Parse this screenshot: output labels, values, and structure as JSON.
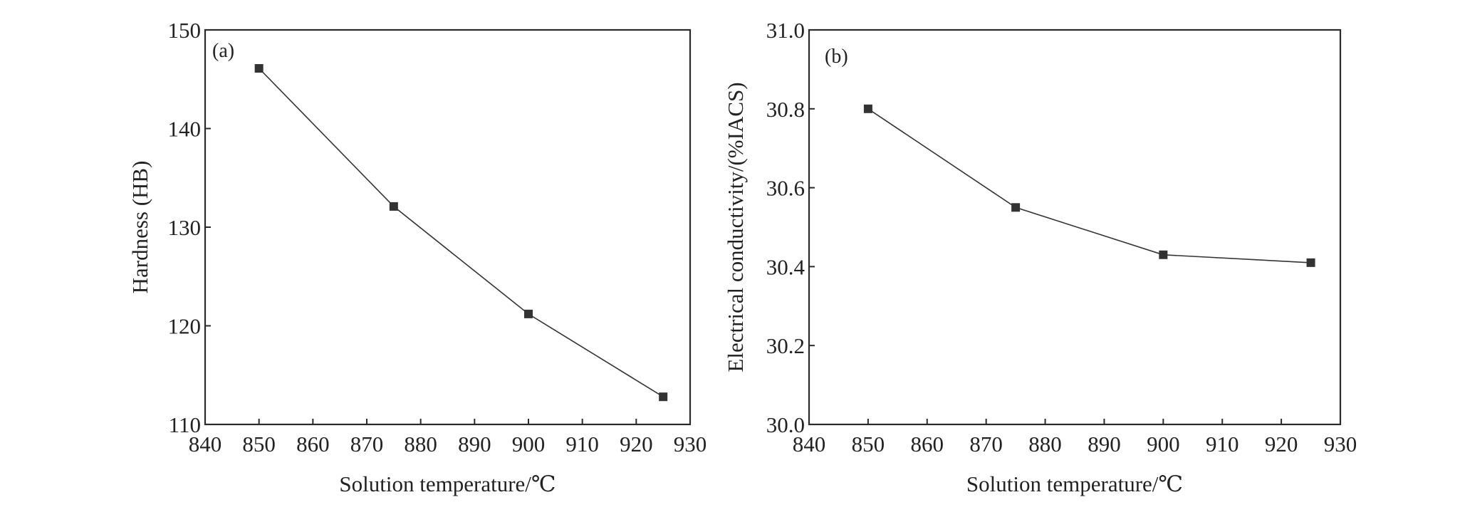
{
  "chart_data": [
    {
      "type": "line",
      "panel_label": "(a)",
      "xlabel": "Solution temperature/℃",
      "ylabel": "Hardness (HB)",
      "xlim": [
        840,
        930
      ],
      "ylim": [
        110,
        150
      ],
      "xticks": [
        "840",
        "850",
        "860",
        "870",
        "880",
        "890",
        "900",
        "910",
        "920",
        "930"
      ],
      "yticks": [
        "110",
        "120",
        "130",
        "140",
        "150"
      ],
      "series": [
        {
          "x": [
            850,
            875,
            900,
            925
          ],
          "y": [
            146.1,
            132.1,
            121.2,
            112.8
          ]
        }
      ],
      "grid": false
    },
    {
      "type": "line",
      "panel_label": "(b)",
      "xlabel": "Solution temperature/℃",
      "ylabel": "Electrical conductivity/(%IACS)",
      "xlim": [
        840,
        930
      ],
      "ylim": [
        30.0,
        31.0
      ],
      "xticks": [
        "840",
        "850",
        "860",
        "870",
        "880",
        "890",
        "900",
        "910",
        "920",
        "930"
      ],
      "yticks": [
        "30.0",
        "30.2",
        "30.4",
        "30.6",
        "30.8",
        "31.0"
      ],
      "series": [
        {
          "x": [
            850,
            875,
            900,
            925
          ],
          "y": [
            30.8,
            30.55,
            30.43,
            30.41
          ]
        }
      ],
      "grid": false
    }
  ]
}
